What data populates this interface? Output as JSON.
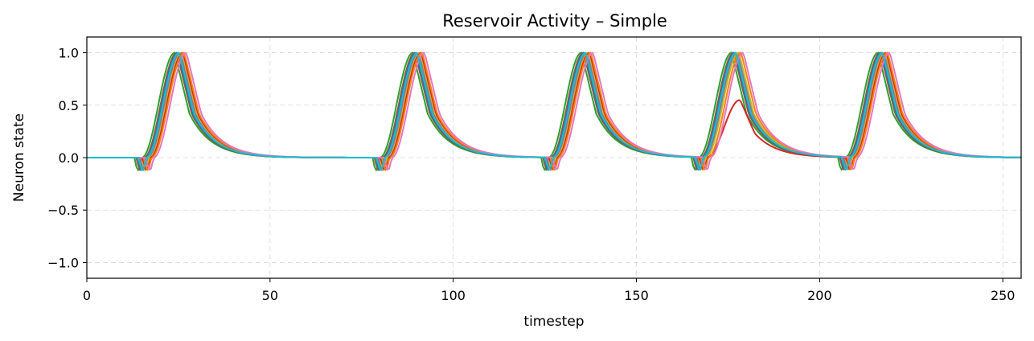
{
  "chart_data": {
    "type": "line",
    "title": "Reservoir Activity – Simple",
    "xlabel": "timestep",
    "ylabel": "Neuron state",
    "xlim": [
      0,
      255
    ],
    "ylim": [
      -1.15,
      1.15
    ],
    "xticks": [
      0,
      50,
      100,
      150,
      200,
      250
    ],
    "yticks": [
      -1.0,
      -0.5,
      0.0,
      0.5,
      1.0
    ],
    "ytick_labels": [
      "−1.0",
      "−0.5",
      "0.0",
      "0.5",
      "1.0"
    ],
    "grid": true,
    "pulse_onsets": [
      15,
      80,
      126,
      167,
      207
    ],
    "series": [
      {
        "color": "#2ca02c",
        "delay": 0.0,
        "peaks": [
          1.0,
          1.0,
          1.0,
          1.0,
          1.0
        ]
      },
      {
        "color": "#8c564b",
        "delay": 0.6,
        "peaks": [
          1.0,
          1.0,
          1.0,
          1.0,
          1.0
        ]
      },
      {
        "color": "#1f77b4",
        "delay": 1.0,
        "peaks": [
          1.0,
          1.0,
          1.0,
          1.0,
          1.0
        ]
      },
      {
        "color": "#7f7f7f",
        "delay": 1.4,
        "peaks": [
          1.0,
          1.0,
          1.0,
          1.0,
          1.0
        ]
      },
      {
        "color": "#9467bd",
        "delay": 1.8,
        "peaks": [
          1.0,
          1.0,
          1.0,
          1.0,
          1.0
        ]
      },
      {
        "color": "#bcbd22",
        "delay": 2.0,
        "peaks": [
          1.0,
          1.0,
          1.0,
          1.0,
          1.0
        ]
      },
      {
        "color": "#d62728",
        "delay": 2.3,
        "peaks": [
          1.0,
          1.0,
          1.0,
          0.55,
          1.0
        ]
      },
      {
        "color": "#ff7f0e",
        "delay": 2.6,
        "peaks": [
          1.0,
          1.0,
          1.0,
          1.0,
          1.0
        ]
      },
      {
        "color": "#e377c2",
        "delay": 3.2,
        "peaks": [
          1.0,
          1.0,
          1.0,
          1.0,
          1.0
        ]
      },
      {
        "color": "#17becf",
        "delay": 1.2,
        "peaks": [
          1.0,
          1.0,
          1.0,
          1.0,
          1.0
        ]
      }
    ]
  }
}
